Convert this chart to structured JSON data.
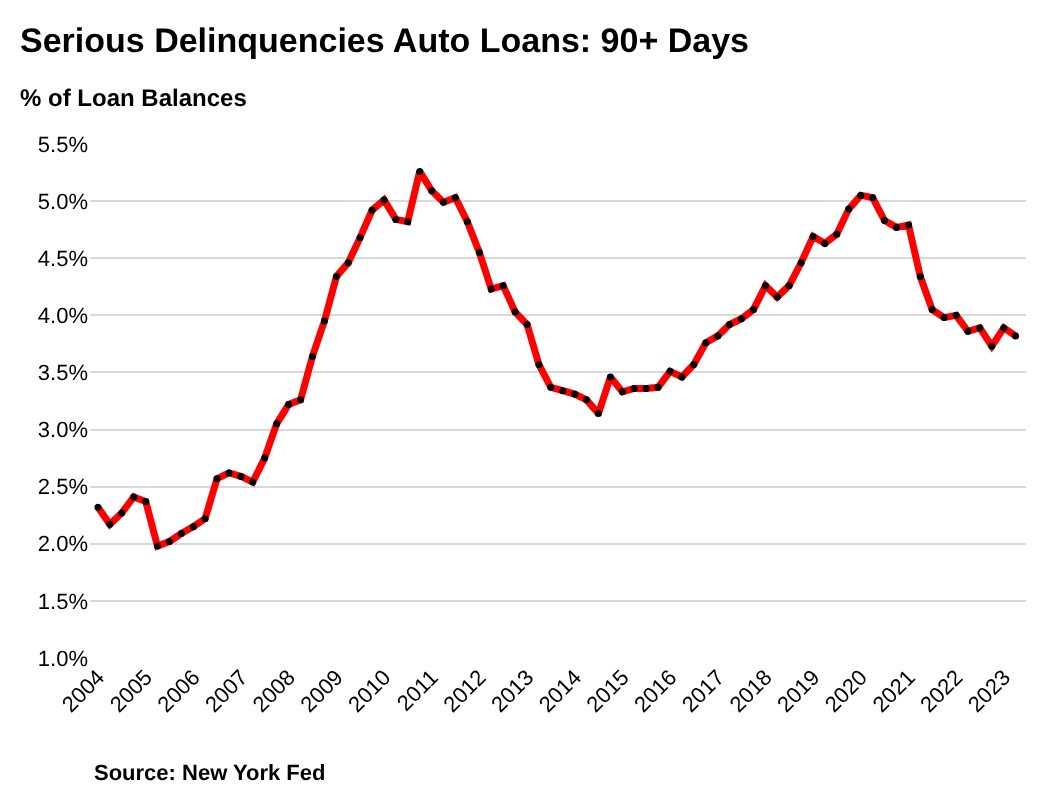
{
  "chart_data": {
    "type": "line",
    "title": "Serious Delinquencies Auto Loans: 90+ Days",
    "subtitle": "% of Loan Balances",
    "annotations": [
      "Source: New York Fed"
    ],
    "x": [
      "2004-01",
      "2004-04",
      "2004-07",
      "2004-10",
      "2005-01",
      "2005-04",
      "2005-07",
      "2005-10",
      "2006-01",
      "2006-04",
      "2006-07",
      "2006-10",
      "2007-01",
      "2007-04",
      "2007-07",
      "2007-10",
      "2008-01",
      "2008-04",
      "2008-07",
      "2008-10",
      "2009-01",
      "2009-04",
      "2009-07",
      "2009-10",
      "2010-01",
      "2010-04",
      "2010-07",
      "2010-10",
      "2011-01",
      "2011-04",
      "2011-07",
      "2011-10",
      "2012-01",
      "2012-04",
      "2012-07",
      "2012-10",
      "2013-01",
      "2013-04",
      "2013-07",
      "2013-10",
      "2014-01",
      "2014-04",
      "2014-07",
      "2014-10",
      "2015-01",
      "2015-04",
      "2015-07",
      "2015-10",
      "2016-01",
      "2016-04",
      "2016-07",
      "2016-10",
      "2017-01",
      "2017-04",
      "2017-07",
      "2017-10",
      "2018-01",
      "2018-04",
      "2018-07",
      "2018-10",
      "2019-01",
      "2019-04",
      "2019-07",
      "2019-10",
      "2020-01",
      "2020-04",
      "2020-07",
      "2020-10",
      "2021-01",
      "2021-04",
      "2021-07",
      "2021-10",
      "2022-01",
      "2022-04",
      "2022-07",
      "2022-10",
      "2023-01",
      "2023-04"
    ],
    "series": [
      {
        "color": "#ff0000",
        "values": [
          2.32,
          2.17,
          2.27,
          2.41,
          2.37,
          1.98,
          2.02,
          2.09,
          2.15,
          2.22,
          2.57,
          2.62,
          2.59,
          2.54,
          2.75,
          3.05,
          3.22,
          3.26,
          3.64,
          3.95,
          4.34,
          4.46,
          4.68,
          4.92,
          5.01,
          4.84,
          4.82,
          5.26,
          5.09,
          4.99,
          5.03,
          4.82,
          4.55,
          4.23,
          4.26,
          4.03,
          3.92,
          3.57,
          3.37,
          3.34,
          3.31,
          3.26,
          3.14,
          3.46,
          3.33,
          3.36,
          3.36,
          3.37,
          3.51,
          3.46,
          3.57,
          3.76,
          3.82,
          3.92,
          3.97,
          4.05,
          4.26,
          4.16,
          4.26,
          4.46,
          4.69,
          4.63,
          4.71,
          4.93,
          5.05,
          5.03,
          4.83,
          4.77,
          4.79,
          4.34,
          4.05,
          3.98,
          4.0,
          3.86,
          3.89,
          3.73,
          3.89,
          3.82
        ]
      }
    ],
    "xlim": [
      "2003-11-01",
      "2023-06-20"
    ],
    "xticks": [
      {
        "value": "2004",
        "label": "2004"
      },
      {
        "value": "2005",
        "label": "2005"
      },
      {
        "value": "2006",
        "label": "2006"
      },
      {
        "value": "2007",
        "label": "2007"
      },
      {
        "value": "2008",
        "label": "2008"
      },
      {
        "value": "2009",
        "label": "2009"
      },
      {
        "value": "2010",
        "label": "2010"
      },
      {
        "value": "2011",
        "label": "2011"
      },
      {
        "value": "2012",
        "label": "2012"
      },
      {
        "value": "2013",
        "label": "2013"
      },
      {
        "value": "2014",
        "label": "2014"
      },
      {
        "value": "2015",
        "label": "2015"
      },
      {
        "value": "2016",
        "label": "2016"
      },
      {
        "value": "2017",
        "label": "2017"
      },
      {
        "value": "2018",
        "label": "2018"
      },
      {
        "value": "2019",
        "label": "2019"
      },
      {
        "value": "2020",
        "label": "2020"
      },
      {
        "value": "2021",
        "label": "2021"
      },
      {
        "value": "2022",
        "label": "2022"
      },
      {
        "value": "2023",
        "label": "2023"
      }
    ],
    "ylim": [
      1.0,
      5.5
    ],
    "yticks": [
      {
        "value": 1.0,
        "label": "1.0%"
      },
      {
        "value": 1.5,
        "label": "1.5%"
      },
      {
        "value": 2.0,
        "label": "2.0%"
      },
      {
        "value": 2.5,
        "label": "2.5%"
      },
      {
        "value": 3.0,
        "label": "3.0%"
      },
      {
        "value": 3.5,
        "label": "3.5%"
      },
      {
        "value": 4.0,
        "label": "4.0%"
      },
      {
        "value": 4.5,
        "label": "4.5%"
      },
      {
        "value": 5.0,
        "label": "5.0%"
      },
      {
        "value": 5.5,
        "label": "5.5%"
      }
    ],
    "grid": "y",
    "marker": "circle",
    "line_style": "solid"
  }
}
